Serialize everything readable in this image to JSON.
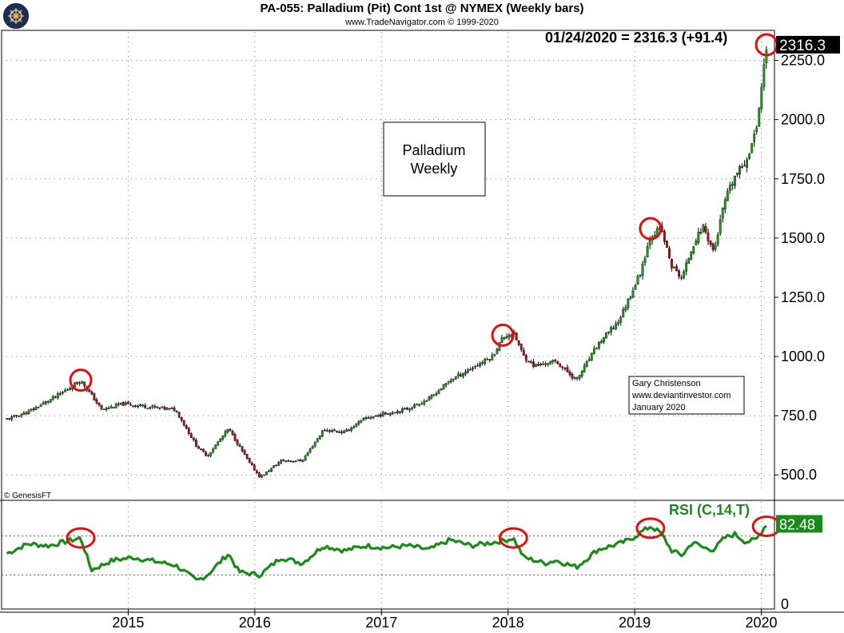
{
  "header": {
    "title": "PA-055:  Palladium (Pit) Cont 1st @ NYMEX  (Weekly bars)",
    "subtitle": "www.TradeNavigator.com © 1999-2020",
    "last_price_text": "01/24/2020 = 2316.3 (+91.4)",
    "copyright": "© GenesisFT",
    "logo_icon": "ship-wheel-icon"
  },
  "annotations": {
    "box_title_line1": "Palladium",
    "box_title_line2": "Weekly",
    "credit_line1": "Gary Christenson",
    "credit_line2": "www.deviantinvestor.com",
    "credit_line3": "January 2020"
  },
  "colors": {
    "up_bar": "#1a9e1a",
    "down_bar": "#b0101a",
    "rsi_line": "#1a8a1a",
    "highlight_circle": "#e01010",
    "price_badge": "#000000",
    "rsi_badge": "#1a8a1a"
  },
  "chart_data": [
    {
      "type": "candlestick",
      "title": "PA-055:  Palladium (Pit) Cont 1st @ NYMEX  (Weekly bars)",
      "ylim": [
        440,
        2370
      ],
      "y_ticks": [
        "500.0",
        "750.0",
        "1000.0",
        "1250.0",
        "1500.0",
        "1750.0",
        "2000.0",
        "2250.0"
      ],
      "last_value_label": "2316.3",
      "grid": true,
      "x_range": [
        "2014-01",
        "2020-02"
      ],
      "anchors": [
        {
          "date": "2014-01",
          "close": 735
        },
        {
          "date": "2014-03",
          "close": 765
        },
        {
          "date": "2014-06",
          "close": 840
        },
        {
          "date": "2014-08",
          "close": 900
        },
        {
          "date": "2014-10",
          "close": 775
        },
        {
          "date": "2014-12",
          "close": 800
        },
        {
          "date": "2015-03",
          "close": 785
        },
        {
          "date": "2015-05",
          "close": 775
        },
        {
          "date": "2015-07",
          "close": 620
        },
        {
          "date": "2015-08",
          "close": 580
        },
        {
          "date": "2015-10",
          "close": 695
        },
        {
          "date": "2015-12",
          "close": 550
        },
        {
          "date": "2016-01",
          "close": 490
        },
        {
          "date": "2016-03",
          "close": 560
        },
        {
          "date": "2016-05",
          "close": 560
        },
        {
          "date": "2016-07",
          "close": 690
        },
        {
          "date": "2016-09",
          "close": 680
        },
        {
          "date": "2016-11",
          "close": 740
        },
        {
          "date": "2017-01",
          "close": 760
        },
        {
          "date": "2017-03",
          "close": 780
        },
        {
          "date": "2017-05",
          "close": 820
        },
        {
          "date": "2017-07",
          "close": 900
        },
        {
          "date": "2017-09",
          "close": 950
        },
        {
          "date": "2017-11",
          "close": 1000
        },
        {
          "date": "2017-12",
          "close": 1080
        },
        {
          "date": "2018-01",
          "close": 1100
        },
        {
          "date": "2018-02",
          "close": 1000
        },
        {
          "date": "2018-03",
          "close": 960
        },
        {
          "date": "2018-05",
          "close": 980
        },
        {
          "date": "2018-07",
          "close": 900
        },
        {
          "date": "2018-09",
          "close": 1050
        },
        {
          "date": "2018-11",
          "close": 1150
        },
        {
          "date": "2018-12",
          "close": 1250
        },
        {
          "date": "2019-01",
          "close": 1350
        },
        {
          "date": "2019-02",
          "close": 1510
        },
        {
          "date": "2019-03",
          "close": 1540
        },
        {
          "date": "2019-04",
          "close": 1380
        },
        {
          "date": "2019-05",
          "close": 1330
        },
        {
          "date": "2019-06",
          "close": 1470
        },
        {
          "date": "2019-07",
          "close": 1550
        },
        {
          "date": "2019-08",
          "close": 1440
        },
        {
          "date": "2019-09",
          "close": 1650
        },
        {
          "date": "2019-10",
          "close": 1760
        },
        {
          "date": "2019-11",
          "close": 1820
        },
        {
          "date": "2019-12",
          "close": 1950
        },
        {
          "date": "2020-01",
          "close": 2316.3
        }
      ],
      "highlights": [
        {
          "date": "2014-08",
          "value": 900
        },
        {
          "date": "2017-12",
          "value": 1090
        },
        {
          "date": "2019-02",
          "value": 1540
        },
        {
          "date": "2020-01",
          "value": 2316
        }
      ]
    },
    {
      "type": "line",
      "title": "RSI (C,14,T)",
      "ylim": [
        -5,
        105
      ],
      "y_ticks": [
        "0"
      ],
      "reference_lines": [
        30,
        70
      ],
      "last_value_label": "82.48",
      "series": [
        {
          "name": "RSI (C,14,T)",
          "values": [
            {
              "date": "2014-01",
              "y": 52
            },
            {
              "date": "2014-03",
              "y": 62
            },
            {
              "date": "2014-05",
              "y": 60
            },
            {
              "date": "2014-08",
              "y": 68
            },
            {
              "date": "2014-09",
              "y": 35
            },
            {
              "date": "2014-11",
              "y": 45
            },
            {
              "date": "2015-01",
              "y": 48
            },
            {
              "date": "2015-03",
              "y": 44
            },
            {
              "date": "2015-05",
              "y": 40
            },
            {
              "date": "2015-07",
              "y": 24
            },
            {
              "date": "2015-08",
              "y": 30
            },
            {
              "date": "2015-10",
              "y": 52
            },
            {
              "date": "2015-11",
              "y": 33
            },
            {
              "date": "2016-01",
              "y": 30
            },
            {
              "date": "2016-03",
              "y": 48
            },
            {
              "date": "2016-05",
              "y": 42
            },
            {
              "date": "2016-07",
              "y": 60
            },
            {
              "date": "2016-09",
              "y": 55
            },
            {
              "date": "2016-11",
              "y": 60
            },
            {
              "date": "2017-01",
              "y": 58
            },
            {
              "date": "2017-03",
              "y": 60
            },
            {
              "date": "2017-05",
              "y": 56
            },
            {
              "date": "2017-07",
              "y": 66
            },
            {
              "date": "2017-09",
              "y": 60
            },
            {
              "date": "2017-12",
              "y": 65
            },
            {
              "date": "2018-01",
              "y": 68
            },
            {
              "date": "2018-02",
              "y": 48
            },
            {
              "date": "2018-04",
              "y": 42
            },
            {
              "date": "2018-05",
              "y": 45
            },
            {
              "date": "2018-07",
              "y": 38
            },
            {
              "date": "2018-09",
              "y": 56
            },
            {
              "date": "2018-11",
              "y": 62
            },
            {
              "date": "2018-12",
              "y": 66
            },
            {
              "date": "2019-02",
              "y": 80
            },
            {
              "date": "2019-03",
              "y": 73
            },
            {
              "date": "2019-04",
              "y": 55
            },
            {
              "date": "2019-05",
              "y": 50
            },
            {
              "date": "2019-06",
              "y": 64
            },
            {
              "date": "2019-07",
              "y": 58
            },
            {
              "date": "2019-08",
              "y": 56
            },
            {
              "date": "2019-09",
              "y": 68
            },
            {
              "date": "2019-10",
              "y": 72
            },
            {
              "date": "2019-11",
              "y": 64
            },
            {
              "date": "2019-12",
              "y": 66
            },
            {
              "date": "2020-01",
              "y": 82.48
            }
          ]
        }
      ],
      "highlights": [
        {
          "date": "2014-08",
          "value": 68
        },
        {
          "date": "2018-01",
          "value": 68
        },
        {
          "date": "2019-02",
          "value": 78
        },
        {
          "date": "2020-01",
          "value": 80
        }
      ]
    }
  ],
  "x_axis": {
    "tick_labels": [
      "2015",
      "2016",
      "2017",
      "2018",
      "2019",
      "2020"
    ]
  }
}
